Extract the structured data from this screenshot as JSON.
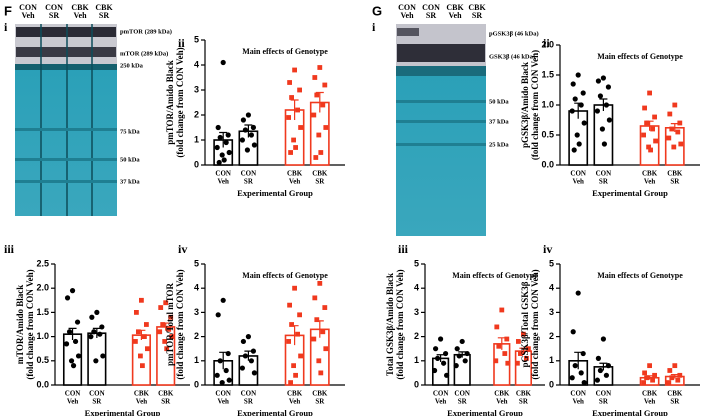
{
  "panel_labels": [
    "F",
    "G"
  ],
  "blots": [
    {
      "panel": "i",
      "lanes": [
        [
          "CON",
          "Veh"
        ],
        [
          "CON",
          "SR"
        ],
        [
          "CBK",
          "Veh"
        ],
        [
          "CBK",
          "SR"
        ]
      ],
      "labels": [
        "pmTOR (289 kDa)",
        "mTOR (289 kDa)",
        "250 kDa",
        "75 kDa",
        "50 kDa",
        "37 kDa"
      ]
    },
    {
      "panel": "i",
      "lanes": [
        [
          "CON",
          "Veh"
        ],
        [
          "CON",
          "SR"
        ],
        [
          "CBK",
          "Veh"
        ],
        [
          "CBK",
          "SR"
        ]
      ],
      "labels": [
        "pGSK3β (46 kDa)",
        "GSK3β (46 kDa)",
        "50 kDa",
        "37 kDa",
        "25 kDa"
      ]
    }
  ],
  "chart_data": [
    {
      "type": "bar",
      "panel": "ii",
      "title": "Main effects of Genotype",
      "ylabel": [
        "pmTOR/Amido Black",
        "(fold change from CON Veh)"
      ],
      "xlabel": "Experimental Group",
      "categories": [
        [
          "CON",
          "Veh"
        ],
        [
          "CON",
          "SR"
        ],
        [
          "CBK",
          "Veh"
        ],
        [
          "CBK",
          "SR"
        ]
      ],
      "colors": [
        "#000000",
        "#000000",
        "#f0391e",
        "#f0391e"
      ],
      "values": [
        1.0,
        1.35,
        2.2,
        2.5
      ],
      "errors": [
        0.3,
        0.25,
        0.4,
        0.4
      ],
      "points": [
        [
          4.1,
          1.5,
          1.2,
          1.1,
          0.9,
          0.7,
          0.5,
          0.4,
          0.2,
          0.1
        ],
        [
          2.0,
          1.8,
          1.5,
          1.4,
          1.2,
          1.0,
          0.8,
          0.6
        ],
        [
          3.8,
          3.3,
          3.0,
          2.7,
          2.2,
          1.9,
          1.5,
          1.0,
          0.7,
          0.5
        ],
        [
          3.9,
          3.5,
          3.2,
          2.8,
          2.4,
          2.0,
          1.5,
          1.2,
          0.5,
          0.3
        ]
      ],
      "ylim": [
        0,
        5
      ],
      "yticks": [
        0,
        1,
        2,
        3,
        4,
        5
      ]
    },
    {
      "type": "bar",
      "panel": "iii",
      "ylabel": [
        "mTOR/Amido Black",
        "(fold change from CON Veh)"
      ],
      "xlabel": "Experimental Group",
      "categories": [
        [
          "CON",
          "Veh"
        ],
        [
          "CON",
          "SR"
        ],
        [
          "CBK",
          "Veh"
        ],
        [
          "CBK",
          "SR"
        ]
      ],
      "colors": [
        "#000000",
        "#000000",
        "#f0391e",
        "#f0391e"
      ],
      "values": [
        1.05,
        1.07,
        1.03,
        1.2
      ],
      "errors": [
        0.12,
        0.1,
        0.1,
        0.08
      ],
      "points": [
        [
          1.95,
          1.8,
          1.3,
          1.1,
          0.9,
          0.85,
          0.6,
          0.5,
          0.4
        ],
        [
          1.5,
          1.4,
          1.2,
          1.1,
          1.05,
          1.0,
          0.6,
          0.5
        ],
        [
          1.75,
          1.5,
          1.25,
          1.1,
          1.0,
          0.9,
          0.75,
          0.6,
          0.4
        ],
        [
          1.7,
          1.6,
          1.4,
          1.25,
          1.15,
          1.1,
          1.0,
          0.9,
          0.75
        ]
      ],
      "ylim": [
        0,
        2.5
      ],
      "yticks": [
        {
          "value": 0,
          "label": "0.0"
        },
        0.5,
        {
          "value": 1,
          "label": "1.0"
        },
        1.5,
        {
          "value": 2,
          "label": "2.0"
        },
        2.5
      ]
    },
    {
      "type": "bar",
      "panel": "iv",
      "title": "Main effects of Genotype",
      "ylabel": [
        "pmTOR/Total mTOR",
        "(fold change from CON Veh)"
      ],
      "xlabel": "Experimental Group",
      "categories": [
        [
          "CON",
          "Veh"
        ],
        [
          "CON",
          "SR"
        ],
        [
          "CBK",
          "Veh"
        ],
        [
          "CBK",
          "SR"
        ]
      ],
      "colors": [
        "#000000",
        "#000000",
        "#f0391e",
        "#f0391e"
      ],
      "values": [
        1.0,
        1.2,
        2.05,
        2.3
      ],
      "errors": [
        0.35,
        0.2,
        0.4,
        0.35
      ],
      "points": [
        [
          3.5,
          2.9,
          1.3,
          1.0,
          0.6,
          0.4,
          0.2,
          0.1
        ],
        [
          2.0,
          1.8,
          1.4,
          1.2,
          1.0,
          0.7,
          0.5
        ],
        [
          4.0,
          3.3,
          2.9,
          2.5,
          2.1,
          1.8,
          1.2,
          0.8,
          0.4,
          0.1
        ],
        [
          4.2,
          3.6,
          3.2,
          2.7,
          2.2,
          1.9,
          1.5,
          1.0,
          0.5
        ]
      ],
      "ylim": [
        0,
        5
      ],
      "yticks": [
        0,
        1,
        2,
        3,
        4,
        5
      ]
    },
    {
      "type": "bar",
      "panel": "ii",
      "title": "Main effects of Genotype",
      "ylabel": [
        "pGSK3β/Amido Black",
        "(fold change from CON Veh)"
      ],
      "xlabel": "Experimental Group",
      "categories": [
        [
          "CON",
          "Veh"
        ],
        [
          "CON",
          "SR"
        ],
        [
          "CBK",
          "Veh"
        ],
        [
          "CBK",
          "SR"
        ]
      ],
      "colors": [
        "#000000",
        "#000000",
        "#f0391e",
        "#f0391e"
      ],
      "values": [
        0.9,
        1.0,
        0.65,
        0.62
      ],
      "errors": [
        0.13,
        0.1,
        0.08,
        0.07
      ],
      "points": [
        [
          1.5,
          1.35,
          1.2,
          1.1,
          1.0,
          0.9,
          0.7,
          0.5,
          0.35,
          0.25
        ],
        [
          1.45,
          1.4,
          1.3,
          1.15,
          1.0,
          0.9,
          0.75,
          0.6,
          0.35
        ],
        [
          1.2,
          0.95,
          0.8,
          0.7,
          0.6,
          0.5,
          0.4,
          0.3,
          0.25
        ],
        [
          1.0,
          0.85,
          0.7,
          0.6,
          0.55,
          0.45,
          0.35,
          0.3
        ]
      ],
      "ylim": [
        0,
        2
      ],
      "yticks": [
        {
          "value": 0,
          "label": "0.0"
        },
        0.5,
        {
          "value": 1,
          "label": "1.0"
        },
        1.5,
        {
          "value": 2,
          "label": "2.0"
        }
      ]
    },
    {
      "type": "bar",
      "panel": "iii",
      "title": "Main effects of Genotype",
      "ylabel": [
        "Total GSK3β/Amido Black",
        "(fold change from CON Veh)"
      ],
      "xlabel": "Experimental Group",
      "categories": [
        [
          "CON",
          "Veh"
        ],
        [
          "CON",
          "SR"
        ],
        [
          "CBK",
          "Veh"
        ],
        [
          "CBK",
          "SR"
        ]
      ],
      "colors": [
        "#000000",
        "#000000",
        "#f0391e",
        "#f0391e"
      ],
      "values": [
        1.1,
        1.25,
        1.7,
        1.4
      ],
      "errors": [
        0.15,
        0.12,
        0.25,
        0.12
      ],
      "points": [
        [
          1.9,
          1.5,
          1.3,
          1.1,
          0.9,
          0.6,
          0.4
        ],
        [
          1.8,
          1.5,
          1.3,
          1.2,
          1.0,
          0.8
        ],
        [
          3.1,
          2.4,
          1.9,
          1.6,
          1.3,
          1.0,
          0.9
        ],
        [
          2.1,
          1.8,
          1.5,
          1.3,
          1.1,
          0.9
        ]
      ],
      "ylim": [
        0,
        5
      ],
      "yticks": [
        0,
        1,
        2,
        3,
        4,
        5
      ]
    },
    {
      "type": "bar",
      "panel": "iv",
      "title": "Main effects of Genotype",
      "ylabel": [
        "pGSK3β/Total GSK3β",
        "(fold change from CON Veh)"
      ],
      "xlabel": "Experimental Group",
      "categories": [
        [
          "CON",
          "Veh"
        ],
        [
          "CON",
          "SR"
        ],
        [
          "CBK",
          "Veh"
        ],
        [
          "CBK",
          "SR"
        ]
      ],
      "colors": [
        "#000000",
        "#000000",
        "#f0391e",
        "#f0391e"
      ],
      "values": [
        1.0,
        0.75,
        0.3,
        0.35
      ],
      "errors": [
        0.35,
        0.15,
        0.08,
        0.08
      ],
      "points": [
        [
          3.8,
          2.2,
          1.3,
          0.8,
          0.5,
          0.3,
          0.1
        ],
        [
          1.9,
          1.1,
          0.8,
          0.6,
          0.4,
          0.2
        ],
        [
          0.8,
          0.5,
          0.4,
          0.3,
          0.2,
          0.1
        ],
        [
          0.8,
          0.6,
          0.4,
          0.3,
          0.2,
          0.1
        ]
      ],
      "ylim": [
        0,
        5
      ],
      "yticks": [
        0,
        1,
        2,
        3,
        4,
        5
      ]
    }
  ]
}
